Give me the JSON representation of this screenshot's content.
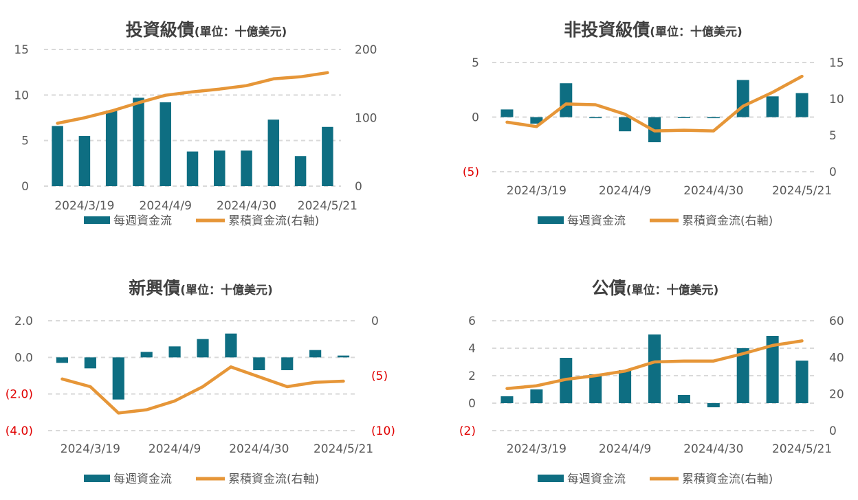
{
  "colors": {
    "bar": "#0e6e82",
    "line": "#e69638",
    "axis_text": "#595959",
    "negative_text": "#e00000",
    "grid": "#d9d9d9"
  },
  "legend": {
    "bar_label": "每週資金流",
    "line_label": "累積資金流(右軸)"
  },
  "chart_data": [
    {
      "id": "ig",
      "type": "bar",
      "title": "投資級債",
      "subtitle": "(單位：十億美元)",
      "categories": [
        "2024/3/12",
        "2024/3/19",
        "2024/3/26",
        "2024/4/2",
        "2024/4/9",
        "2024/4/16",
        "2024/4/23",
        "2024/4/30",
        "2024/5/7",
        "2024/5/14",
        "2024/5/21"
      ],
      "x_tick_labels": [
        "2024/3/19",
        "2024/4/9",
        "2024/4/30",
        "2024/5/21"
      ],
      "series": [
        {
          "name": "每週資金流",
          "type": "bar",
          "axis": "left",
          "values": [
            6.6,
            5.5,
            8.3,
            9.7,
            9.2,
            3.8,
            3.9,
            3.9,
            7.3,
            3.3,
            6.5
          ]
        },
        {
          "name": "累積資金流(右軸)",
          "type": "line",
          "axis": "right",
          "values": [
            92,
            100,
            110,
            122,
            133,
            138,
            142,
            147,
            157,
            160,
            166
          ]
        }
      ],
      "y_left": {
        "min": 0,
        "max": 15,
        "ticks": [
          0,
          5,
          10,
          15
        ],
        "tick_labels": [
          "0",
          "5",
          "10",
          "15"
        ]
      },
      "y_right": {
        "min": 0,
        "max": 200,
        "ticks": [
          0,
          100,
          200
        ],
        "tick_labels": [
          "0",
          "100",
          "200"
        ]
      },
      "grid": true
    },
    {
      "id": "hy",
      "type": "bar",
      "title": "非投資級債",
      "subtitle": "(單位：十億美元)",
      "categories": [
        "2024/3/12",
        "2024/3/19",
        "2024/3/26",
        "2024/4/2",
        "2024/4/9",
        "2024/4/16",
        "2024/4/23",
        "2024/4/30",
        "2024/5/7",
        "2024/5/14",
        "2024/5/21"
      ],
      "x_tick_labels": [
        "2024/3/19",
        "2024/4/9",
        "2024/4/30",
        "2024/5/21"
      ],
      "series": [
        {
          "name": "每週資金流",
          "type": "bar",
          "axis": "left",
          "values": [
            0.7,
            -0.6,
            3.1,
            -0.1,
            -1.3,
            -2.3,
            0.0,
            -0.1,
            3.4,
            1.9,
            2.2
          ]
        },
        {
          "name": "累積資金流(右軸)",
          "type": "line",
          "axis": "right",
          "values": [
            6.8,
            6.2,
            9.3,
            9.2,
            7.9,
            5.6,
            5.7,
            5.6,
            9.0,
            10.9,
            13.1
          ]
        }
      ],
      "y_left": {
        "min": -5,
        "max": 5,
        "ticks": [
          -5,
          0,
          5
        ],
        "tick_labels": [
          "(5)",
          "0",
          "5"
        ]
      },
      "y_right": {
        "min": 0,
        "max": 15,
        "ticks": [
          0,
          5,
          10,
          15
        ],
        "tick_labels": [
          "0",
          "5",
          "10",
          "15"
        ]
      },
      "grid": true
    },
    {
      "id": "em",
      "type": "bar",
      "title": "新興債",
      "subtitle": "(單位：十億美元)",
      "categories": [
        "2024/3/12",
        "2024/3/19",
        "2024/3/26",
        "2024/4/2",
        "2024/4/9",
        "2024/4/16",
        "2024/4/23",
        "2024/4/30",
        "2024/5/7",
        "2024/5/14",
        "2024/5/21"
      ],
      "x_tick_labels": [
        "2024/3/19",
        "2024/4/9",
        "2024/4/30",
        "2024/5/21"
      ],
      "series": [
        {
          "name": "每週資金流",
          "type": "bar",
          "axis": "left",
          "values": [
            -0.3,
            -0.6,
            -2.3,
            0.3,
            0.6,
            1.0,
            1.3,
            -0.7,
            -0.7,
            0.4,
            0.1
          ]
        },
        {
          "name": "累積資金流(右軸)",
          "type": "line",
          "axis": "right",
          "values": [
            -5.3,
            -6.0,
            -8.4,
            -8.1,
            -7.3,
            -6.0,
            -4.2,
            -5.1,
            -6.0,
            -5.6,
            -5.5
          ]
        }
      ],
      "y_left": {
        "min": -4,
        "max": 2,
        "ticks": [
          -4,
          -2,
          0,
          2
        ],
        "tick_labels": [
          "(4.0)",
          "(2.0)",
          "0.0",
          "2.0"
        ]
      },
      "y_right": {
        "min": -10,
        "max": 0,
        "ticks": [
          -10,
          -5,
          0
        ],
        "tick_labels": [
          "(10)",
          "(5)",
          "0"
        ]
      },
      "grid": true
    },
    {
      "id": "gov",
      "type": "bar",
      "title": "公債",
      "subtitle": "(單位：十億美元)",
      "categories": [
        "2024/3/12",
        "2024/3/19",
        "2024/3/26",
        "2024/4/2",
        "2024/4/9",
        "2024/4/16",
        "2024/4/23",
        "2024/4/30",
        "2024/5/7",
        "2024/5/14",
        "2024/5/21"
      ],
      "x_tick_labels": [
        "2024/3/19",
        "2024/4/9",
        "2024/4/30",
        "2024/5/21"
      ],
      "series": [
        {
          "name": "每週資金流",
          "type": "bar",
          "axis": "left",
          "values": [
            0.5,
            1.0,
            3.3,
            2.1,
            2.4,
            5.0,
            0.6,
            -0.3,
            4.0,
            4.9,
            3.1
          ]
        },
        {
          "name": "累積資金流(右軸)",
          "type": "line",
          "axis": "right",
          "values": [
            23,
            24.5,
            28,
            30,
            32.5,
            37.5,
            38,
            38,
            42,
            46.5,
            49
          ]
        }
      ],
      "y_left": {
        "min": -2,
        "max": 6,
        "ticks": [
          -2,
          0,
          2,
          4,
          6
        ],
        "tick_labels": [
          "(2)",
          "0",
          "2",
          "4",
          "6"
        ]
      },
      "y_right": {
        "min": 0,
        "max": 60,
        "ticks": [
          0,
          20,
          40,
          60
        ],
        "tick_labels": [
          "0",
          "20",
          "40",
          "60"
        ]
      },
      "grid": true
    }
  ]
}
